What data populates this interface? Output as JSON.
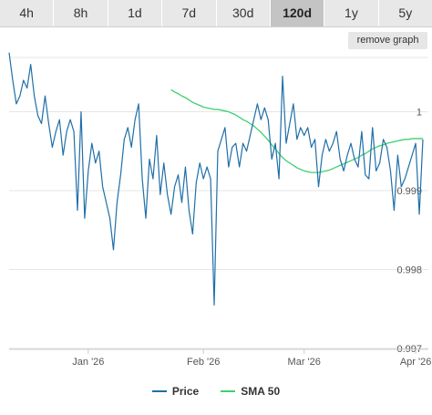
{
  "tabs": [
    {
      "label": "4h",
      "active": false
    },
    {
      "label": "8h",
      "active": false
    },
    {
      "label": "1d",
      "active": false
    },
    {
      "label": "7d",
      "active": false
    },
    {
      "label": "30d",
      "active": false
    },
    {
      "label": "120d",
      "active": true
    },
    {
      "label": "1y",
      "active": false
    },
    {
      "label": "5y",
      "active": false
    }
  ],
  "remove_graph_label": "remove graph",
  "chart_data": {
    "type": "line",
    "title": "",
    "xlabel": "",
    "ylabel": "",
    "ylim": [
      0.997,
      1.0007
    ],
    "x_tick_labels": [
      "Jan '26",
      "Feb '26",
      "Mar '26",
      "Apr '26"
    ],
    "y_tick_labels": [
      "0.997",
      "0.998",
      "0.999",
      "1"
    ],
    "y_ticks": [
      0.997,
      0.998,
      0.999,
      1.0
    ],
    "grid": true,
    "legend_position": "bottom",
    "series": [
      {
        "name": "Price",
        "color": "#1f6fa8",
        "values": [
          1.00075,
          1.0004,
          1.0001,
          1.0002,
          1.0004,
          1.0003,
          1.0006,
          1.0002,
          0.99995,
          0.99985,
          1.0002,
          0.99985,
          0.99955,
          0.99975,
          0.9999,
          0.99945,
          0.99975,
          0.9999,
          0.99975,
          0.99875,
          1.0,
          0.99865,
          0.99925,
          0.9996,
          0.99935,
          0.9995,
          0.99905,
          0.99885,
          0.99865,
          0.99825,
          0.99885,
          0.9992,
          0.99965,
          0.9998,
          0.99955,
          0.9999,
          1.0001,
          0.99915,
          0.99865,
          0.9994,
          0.99915,
          0.9997,
          0.99895,
          0.99935,
          0.99895,
          0.9987,
          0.99905,
          0.9992,
          0.99885,
          0.9993,
          0.99875,
          0.99845,
          0.9991,
          0.99935,
          0.99915,
          0.9993,
          0.99915,
          0.99755,
          0.9995,
          0.99965,
          0.9998,
          0.9993,
          0.99955,
          0.9996,
          0.9993,
          0.9996,
          0.9995,
          0.9997,
          0.9999,
          1.0001,
          0.9999,
          1.00005,
          0.9999,
          0.9994,
          0.9996,
          0.99915,
          1.00045,
          0.9996,
          0.99985,
          1.0001,
          0.99965,
          0.9998,
          0.9997,
          0.9998,
          0.99955,
          0.99965,
          0.99905,
          0.99945,
          0.99965,
          0.9995,
          0.9996,
          0.99975,
          0.9994,
          0.99925,
          0.99945,
          0.9996,
          0.9994,
          0.9993,
          0.99975,
          0.9992,
          0.99915,
          0.9998,
          0.99925,
          0.99935,
          0.99965,
          0.99955,
          0.99925,
          0.99875,
          0.99945,
          0.99905,
          0.99915,
          0.9993,
          0.99945,
          0.9996,
          0.9987,
          0.99965
        ],
        "x_start": 0,
        "x_step": 1
      },
      {
        "name": "SMA 50",
        "color": "#3ecf70",
        "values": [
          1.00028,
          1.00025,
          1.00023,
          1.0002,
          1.00018,
          1.00015,
          1.00012,
          1.0001,
          1.00008,
          1.00006,
          1.00005,
          1.00004,
          1.00003,
          1.00003,
          1.00002,
          1.00001,
          1.0,
          0.99998,
          0.99996,
          0.99993,
          0.9999,
          0.99988,
          0.99985,
          0.99982,
          0.99978,
          0.99974,
          0.99969,
          0.99964,
          0.99958,
          0.99953,
          0.99947,
          0.99942,
          0.99938,
          0.99935,
          0.99932,
          0.99929,
          0.99927,
          0.99925,
          0.99924,
          0.99923,
          0.99923,
          0.99923,
          0.99924,
          0.99925,
          0.99926,
          0.99928,
          0.9993,
          0.99932,
          0.99934,
          0.99936,
          0.99938,
          0.9994,
          0.99942,
          0.99945,
          0.99947,
          0.9995,
          0.99953,
          0.99955,
          0.99957,
          0.99958,
          0.9996,
          0.99961,
          0.99962,
          0.99963,
          0.99964,
          0.99965,
          0.99965,
          0.99966,
          0.99966,
          0.99966,
          0.99966
        ],
        "x_start": 45,
        "x_step": 1
      }
    ]
  }
}
